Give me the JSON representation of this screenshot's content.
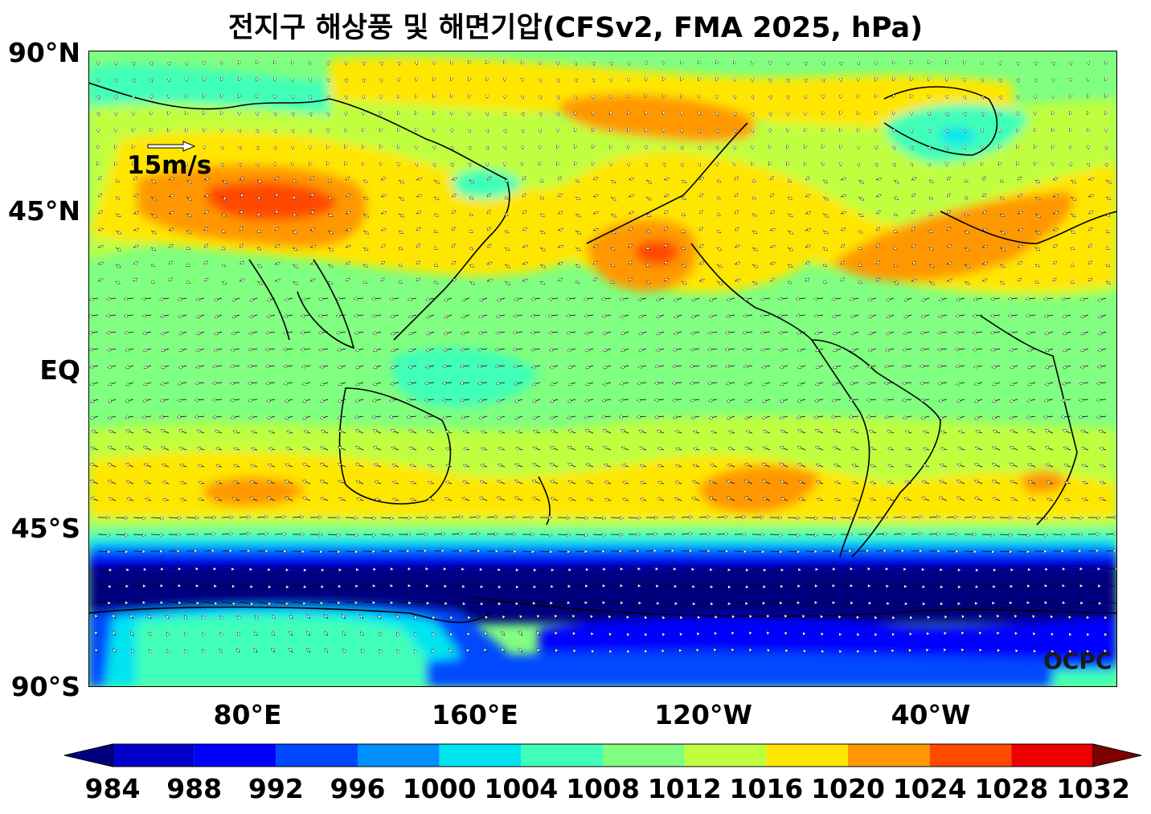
{
  "title": "전지구 해상풍 및 해면기압(CFSv2, FMA 2025, hPa)",
  "axes": {
    "y_ticks": [
      "90°N",
      "45°N",
      "EQ",
      "45°S",
      "90°S"
    ],
    "x_ticks": [
      "80°E",
      "160°E",
      "120°W",
      "40°W"
    ]
  },
  "colorbar": {
    "ticks": [
      "984",
      "988",
      "992",
      "996",
      "1000",
      "1004",
      "1008",
      "1012",
      "1016",
      "1020",
      "1024",
      "1028",
      "1032"
    ],
    "colors": [
      "#00007f",
      "#0000c8",
      "#0000ff",
      "#0048ff",
      "#0090ff",
      "#00e4f0",
      "#40ffb8",
      "#80ff80",
      "#c0ff40",
      "#ffe600",
      "#ff9800",
      "#ff4a00",
      "#ee0000",
      "#7f0000"
    ]
  },
  "reference_vector": {
    "label": "15m/s"
  },
  "logo": "OCPC"
}
